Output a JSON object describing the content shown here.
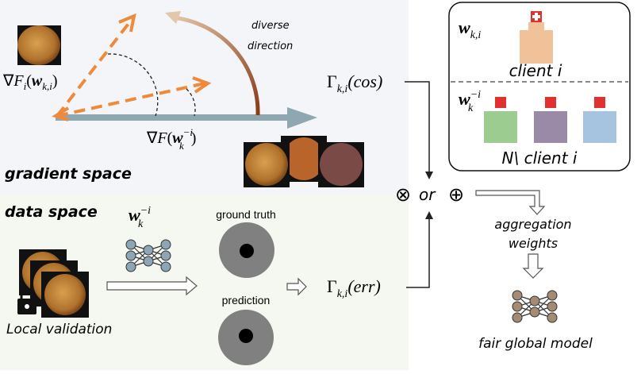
{
  "gradient_space": {
    "title": "gradient space",
    "annotation": "diverse direction",
    "local_gradient_label": {
      "nabla": "∇",
      "F": "F",
      "sub": "i",
      "open": "(",
      "w": "w",
      "w_sub": "k,i",
      "close": ")"
    },
    "global_gradient_label": {
      "nabla": "∇",
      "F": "F",
      "open": "(",
      "w": "w",
      "w_sub": "k",
      "w_sup": "−i",
      "close": ")"
    },
    "gamma_cos": {
      "gamma": "Γ",
      "sub": "k,i",
      "arg": "(cos)"
    }
  },
  "data_space": {
    "title": "data space",
    "model_label": {
      "w": "w",
      "sub": "k",
      "sup": "−i"
    },
    "ground_truth": "ground truth",
    "prediction": "prediction",
    "local_validation": "Local validation",
    "gamma_err": {
      "gamma": "Γ",
      "sub": "k,i",
      "arg": "(err)"
    }
  },
  "clients_box": {
    "client_weight": {
      "w": "w",
      "sub": "k,i"
    },
    "client_label": "client i",
    "others_weight": {
      "w": "w",
      "sub": "k",
      "sup": "−i"
    },
    "others_label": "N\\ client i"
  },
  "combine": {
    "otimes": "⊗",
    "or": "or",
    "oplus": "⊕"
  },
  "aggregation_weights": "aggregation weights",
  "fair_global_model": "fair global model",
  "colors": {
    "orange_arrow": "#ee8a3a",
    "gray_arrow": "#8fa7b0",
    "gradient_bg": "#f3f5f9",
    "data_bg": "#f5f8f1",
    "node_blue": "#8da5b5",
    "node_brown": "#a58b74"
  }
}
